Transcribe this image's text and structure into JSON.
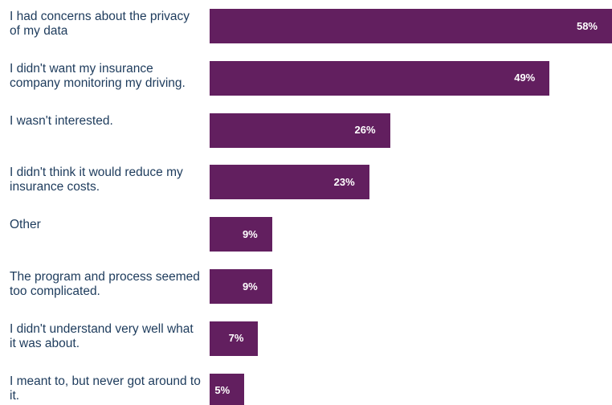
{
  "chart_data": {
    "type": "bar",
    "orientation": "horizontal",
    "color": "#621f5f",
    "categories": [
      "I had concerns about the privacy of my data",
      "I didn't want my insurance company monitoring my driving.",
      "I wasn't interested.",
      "I didn't think it would reduce my insurance costs.",
      "Other",
      "The program and process seemed too complicated.",
      "I didn't understand very well what it was about.",
      "I meant to, but never got around to it."
    ],
    "values": [
      58,
      49,
      26,
      23,
      9,
      9,
      7,
      5
    ],
    "value_labels": [
      "58%",
      "49%",
      "26%",
      "23%",
      "9%",
      "9%",
      "7%",
      "5%"
    ]
  }
}
